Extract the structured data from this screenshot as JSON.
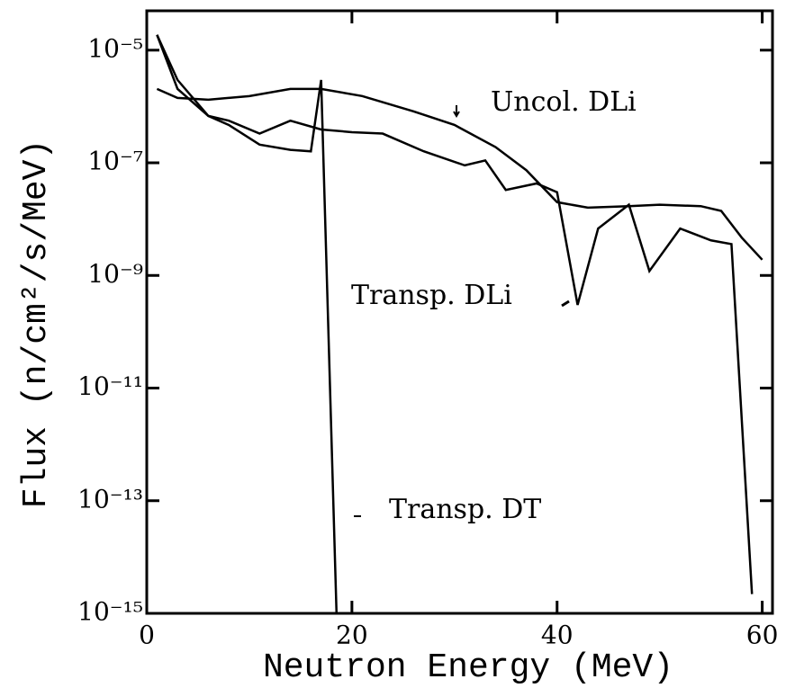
{
  "chart_data": {
    "type": "line",
    "xlabel": "Neutron Energy (MeV)",
    "ylabel": "Flux (n/cm²/s/MeV)",
    "xlim": [
      0,
      61
    ],
    "xticks": [
      0,
      20,
      40,
      60
    ],
    "ylim": [
      1e-15,
      5e-05
    ],
    "log_y": true,
    "yticks": [
      {
        "value": 1e-15,
        "label": "10⁻¹⁵"
      },
      {
        "value": 1e-13,
        "label": "10⁻¹³"
      },
      {
        "value": 1e-11,
        "label": "10⁻¹¹"
      },
      {
        "value": 1e-09,
        "label": "10⁻⁹"
      },
      {
        "value": 1e-07,
        "label": "10⁻⁷"
      },
      {
        "value": 1e-05,
        "label": "10⁻⁵"
      }
    ],
    "series": [
      {
        "name": "Uncol. DLi",
        "color": "#000000",
        "x": [
          1,
          3,
          6,
          10,
          14,
          17,
          21,
          26,
          30,
          34,
          37,
          40,
          43,
          47,
          50,
          54,
          56,
          58,
          60
        ],
        "values": [
          2.05e-06,
          1.42e-06,
          1.32e-06,
          1.53e-06,
          2.05e-06,
          2.05e-06,
          1.53e-06,
          8.2e-07,
          4.7e-07,
          1.9e-07,
          7.4e-08,
          2e-08,
          1.6e-08,
          1.7e-08,
          1.8e-08,
          1.7e-08,
          1.4e-08,
          4.7e-09,
          1.9e-09
        ]
      },
      {
        "name": "Transp. DLi",
        "color": "#000000",
        "x": [
          1,
          3,
          6,
          8,
          11,
          14,
          17,
          20,
          23,
          27,
          31,
          33,
          35,
          38,
          40,
          42,
          44,
          47,
          49,
          52,
          55,
          57,
          59
        ],
        "values": [
          1.87e-05,
          2.96e-06,
          6.8e-07,
          5.6e-07,
          3.3e-07,
          5.6e-07,
          3.9e-07,
          3.5e-07,
          3.3e-07,
          1.6e-07,
          9e-08,
          1.1e-07,
          3.3e-08,
          4.3e-08,
          3e-08,
          3e-10,
          6.8e-09,
          1.8e-08,
          1.2e-09,
          6.8e-09,
          4.2e-09,
          3.6e-09,
          2.2e-15
        ]
      },
      {
        "name": "Transp. DT",
        "color": "#000000",
        "x": [
          1,
          3,
          6,
          8,
          11,
          14,
          16,
          17,
          18.5
        ],
        "values": [
          1.87e-05,
          2.05e-06,
          6.8e-07,
          4.7e-07,
          2.1e-07,
          1.7e-07,
          1.6e-07,
          2.96e-06,
          1e-15
        ]
      }
    ]
  }
}
